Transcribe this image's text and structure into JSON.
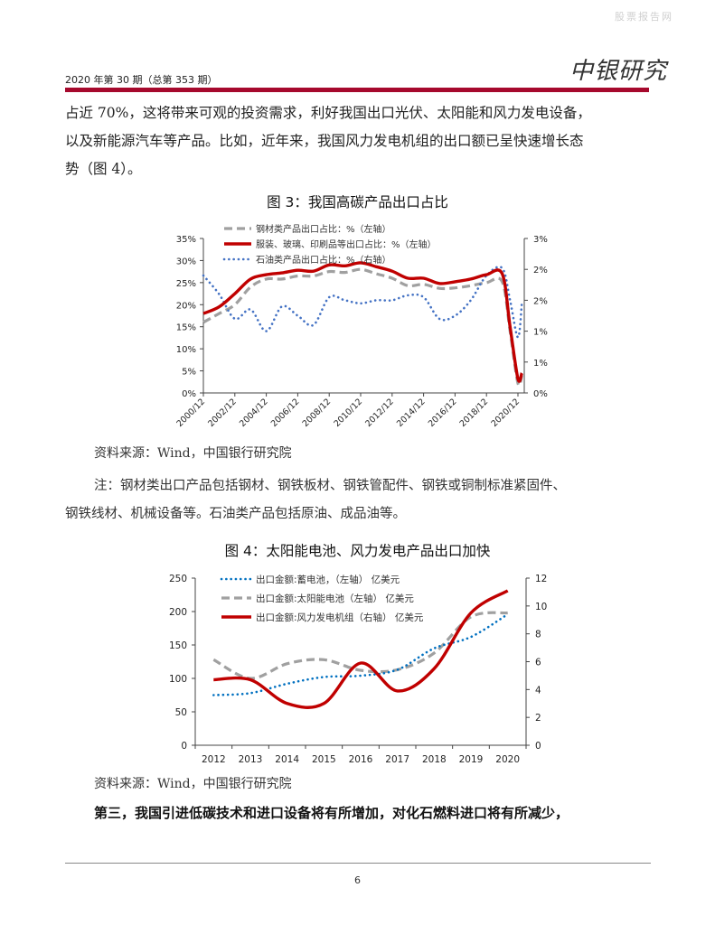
{
  "header": {
    "watermark": "股票报告网",
    "issue": "2020 年第 30 期（总第 353 期）",
    "logo": "中银研究",
    "accent_color": "#a6092d"
  },
  "body": {
    "para1_line1": "占近 70%，这将带来可观的投资需求，利好我国出口光伏、太阳能和风力发电设备，",
    "para1_line2": "以及新能源汽车等产品。比如，近年来，我国风力发电机组的出口额已呈快速增长态",
    "para1_line3": "势（图 4）。",
    "fig3_caption": "图 3：我国高碳产品出口占比",
    "fig3_source": "资料来源：Wind，中国银行研究院",
    "note_line1": "注：钢材类出口产品包括钢材、钢铁板材、钢铁管配件、钢铁或铜制标准紧固件、",
    "note_line2": "钢铁线材、机械设备等。石油类产品包括原油、成品油等。",
    "fig4_caption": "图 4：太阳能电池、风力发电产品出口加快",
    "fig4_source": "资料来源：Wind，中国银行研究院",
    "bold_line": "第三，我国引进低碳技术和进口设备将有所增加，对化石燃料进口将有所减少，"
  },
  "footer": {
    "page_number": "6"
  },
  "chart_data": [
    {
      "type": "line",
      "title": "图 3：我国高碳产品出口占比",
      "x": [
        "2000/12",
        "2001/12",
        "2002/12",
        "2003/12",
        "2004/12",
        "2005/12",
        "2006/12",
        "2007/12",
        "2008/12",
        "2009/12",
        "2010/12",
        "2011/12",
        "2012/12",
        "2013/12",
        "2014/12",
        "2015/12",
        "2016/12",
        "2017/12",
        "2018/12",
        "2019/12",
        "2020/06",
        "2020/12",
        "2021/03"
      ],
      "x_tick_labels": [
        "2000/12",
        "2002/12",
        "2004/12",
        "2006/12",
        "2008/12",
        "2010/12",
        "2012/12",
        "2014/12",
        "2016/12",
        "2018/12",
        "2020/12"
      ],
      "y_left": {
        "ticks": [
          "0%",
          "5%",
          "10%",
          "15%",
          "20%",
          "25%",
          "30%",
          "35%"
        ],
        "ylim": [
          0,
          35
        ]
      },
      "y_right": {
        "ticks": [
          "0%",
          "1%",
          "1%",
          "2%",
          "2%",
          "3%"
        ],
        "ylim": [
          0,
          2.5
        ]
      },
      "legend_position": "top-left inside",
      "series": [
        {
          "name": "钢材类产品出口占比：%（左轴）",
          "axis": "left",
          "style": "dashed",
          "color": "#a0a0a0",
          "values": [
            16,
            18,
            20,
            24,
            25.8,
            25.8,
            26.5,
            26.5,
            27.5,
            27.3,
            28,
            27,
            26,
            24.3,
            24.6,
            23.7,
            23.8,
            24.3,
            25,
            25.2,
            14,
            2.2,
            4
          ]
        },
        {
          "name": "服装、玻璃、印刷品等出口占比：%（左轴）",
          "axis": "left",
          "style": "solid",
          "color": "#c00000",
          "values": [
            18,
            19.5,
            22.5,
            25.8,
            26.8,
            27.2,
            27.8,
            27.6,
            29,
            28.8,
            29.5,
            28.6,
            27.6,
            26,
            26,
            24.8,
            25.2,
            25.8,
            26.8,
            27,
            15,
            3.2,
            4.5
          ]
        },
        {
          "name": "石油类产品出口占比：%（右轴）",
          "axis": "right",
          "style": "dotted",
          "color": "#4472c4",
          "values": [
            1.9,
            1.6,
            1.2,
            1.35,
            1.0,
            1.4,
            1.25,
            1.1,
            1.55,
            1.5,
            1.45,
            1.5,
            1.5,
            1.58,
            1.55,
            1.2,
            1.25,
            1.5,
            1.9,
            2.02,
            1.5,
            0.9,
            1.45
          ]
        }
      ]
    },
    {
      "type": "line",
      "title": "图 4：太阳能电池、风力发电产品出口加快",
      "categories": [
        "2012",
        "2013",
        "2014",
        "2015",
        "2016",
        "2017",
        "2018",
        "2019",
        "2020"
      ],
      "y_left": {
        "ticks": [
          "0",
          "50",
          "100",
          "150",
          "200",
          "250"
        ],
        "ylim": [
          0,
          250
        ]
      },
      "y_right": {
        "ticks": [
          "0",
          "2",
          "4",
          "6",
          "8",
          "10",
          "12"
        ],
        "ylim": [
          0,
          12
        ]
      },
      "legend_position": "top-left inside",
      "series": [
        {
          "name": "出口金额:蓄电池，（左轴） 亿美元",
          "axis": "left",
          "style": "dotted",
          "color": "#0070c0",
          "values": [
            75,
            78,
            92,
            102,
            104,
            113,
            145,
            162,
            196
          ]
        },
        {
          "name": "出口金额:太阳能电池（左轴） 亿美元",
          "axis": "left",
          "style": "dashed",
          "color": "#a0a0a0",
          "values": [
            128,
            100,
            122,
            128,
            112,
            113,
            138,
            192,
            198
          ]
        },
        {
          "name": "出口金额:风力发电机组（右轴） 亿美元",
          "axis": "right",
          "style": "solid",
          "color": "#c00000",
          "values": [
            4.7,
            4.7,
            3.0,
            3.0,
            5.9,
            3.9,
            5.5,
            9.5,
            11.1
          ]
        }
      ]
    }
  ]
}
